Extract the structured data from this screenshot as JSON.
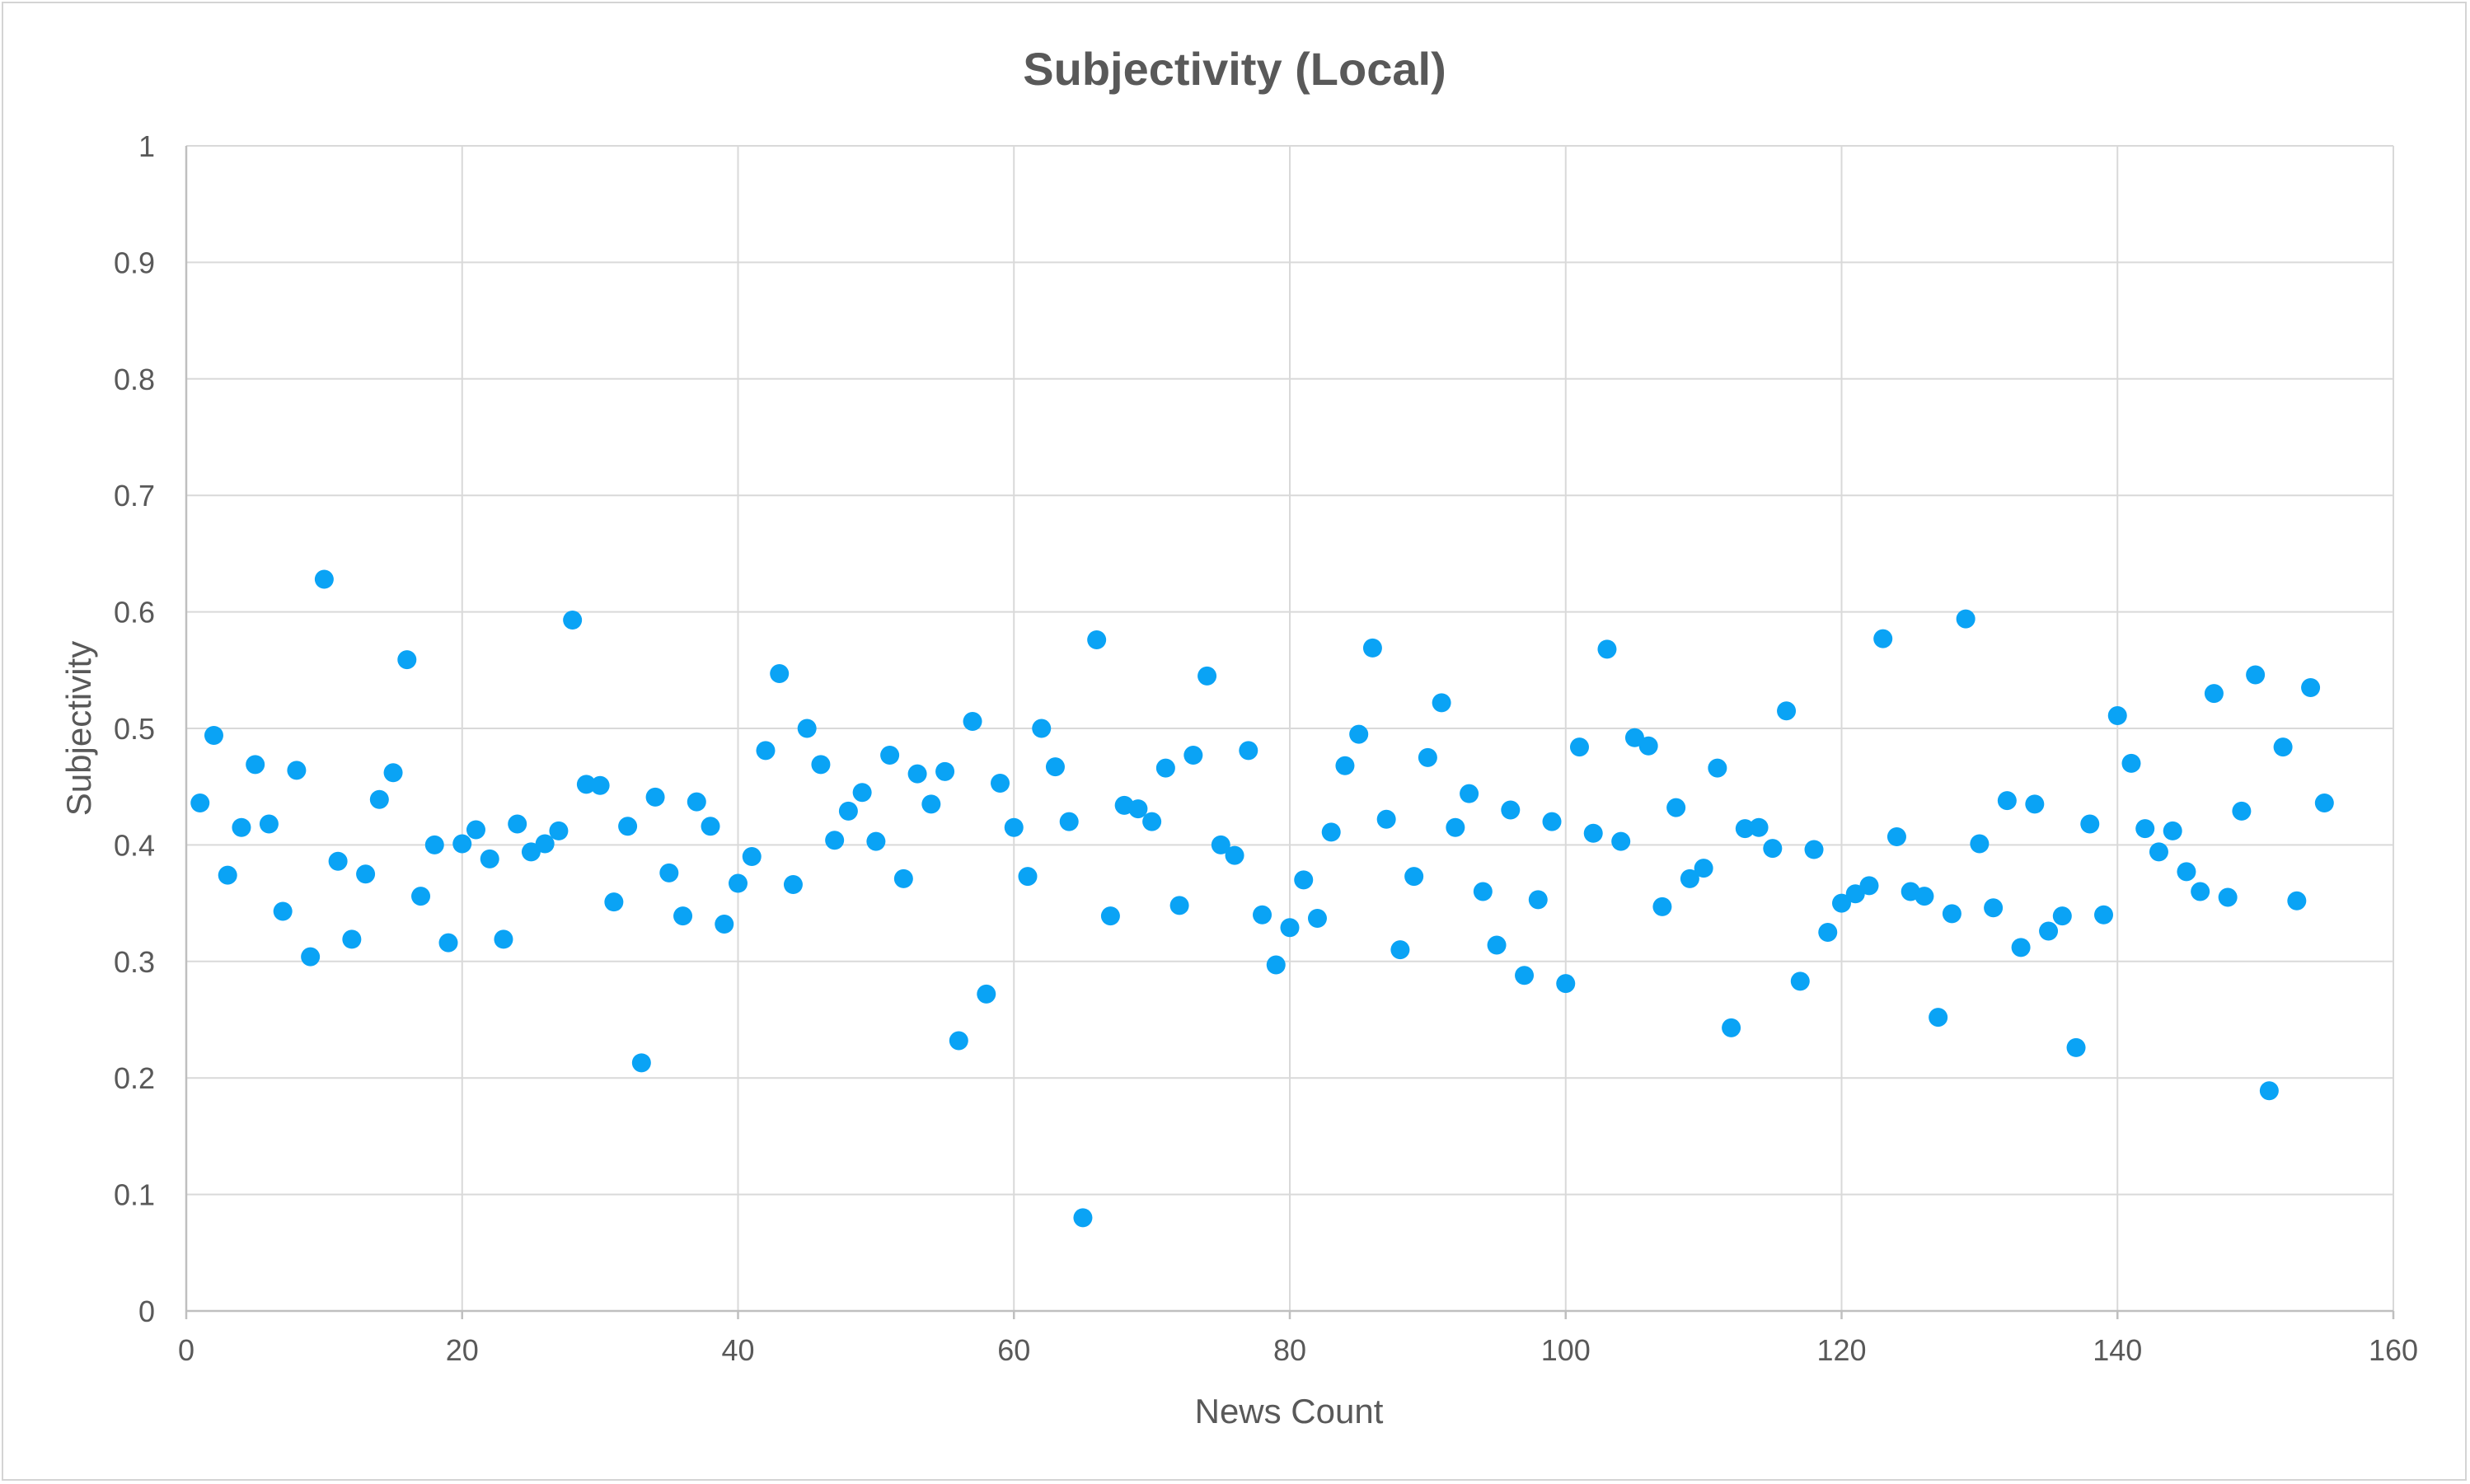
{
  "chart_data": {
    "type": "scatter",
    "title": "Subjectivity (Local)",
    "xlabel": "News Count",
    "ylabel": "Subjectivity",
    "xlim": [
      0,
      160
    ],
    "ylim": [
      0,
      1
    ],
    "x_ticks": [
      0,
      20,
      40,
      60,
      80,
      100,
      120,
      140,
      160
    ],
    "y_ticks": [
      0,
      0.1,
      0.2,
      0.3,
      0.4,
      0.5,
      0.6,
      0.7,
      0.8,
      0.9,
      1
    ],
    "x_tick_labels": [
      "0",
      "20",
      "40",
      "60",
      "80",
      "100",
      "120",
      "140",
      "160"
    ],
    "y_tick_labels": [
      "0",
      "0.1",
      "0.2",
      "0.3",
      "0.4",
      "0.5",
      "0.6",
      "0.7",
      "0.8",
      "0.9",
      "1"
    ],
    "grid": true,
    "legend": "none",
    "marker_color": "#0aa3f5",
    "series": [
      {
        "x": [
          1,
          2,
          3,
          4,
          5,
          6,
          7,
          8,
          9,
          10,
          11,
          12,
          13,
          14,
          15,
          16,
          17,
          18,
          19,
          20,
          21,
          22,
          23,
          24,
          25,
          26,
          27,
          28,
          29,
          30,
          31,
          32,
          33,
          34,
          35,
          36,
          37,
          38,
          39,
          40,
          41,
          42,
          43,
          44,
          45,
          46,
          47,
          48,
          49,
          50,
          51,
          52,
          53,
          54,
          55,
          56,
          57,
          58,
          59,
          60,
          61,
          62,
          63,
          64,
          65,
          66,
          67,
          68,
          69,
          70,
          71,
          72,
          73,
          74,
          75,
          76,
          77,
          78,
          79,
          80,
          81,
          82,
          83,
          84,
          85,
          86,
          87,
          88,
          89,
          90,
          91,
          92,
          93,
          94,
          95,
          96,
          97,
          98,
          99,
          100,
          101,
          102,
          103,
          104,
          105,
          106,
          107,
          108,
          109,
          110,
          111,
          112,
          113,
          114,
          115,
          116,
          117,
          118,
          119,
          120,
          121,
          122,
          123,
          124,
          125,
          126,
          127,
          128,
          129,
          130,
          131,
          132,
          133,
          134,
          135,
          136,
          137,
          138,
          139,
          140,
          141,
          142,
          143,
          144,
          145,
          146,
          147,
          148,
          149,
          150,
          151,
          152,
          153,
          154,
          155
        ],
        "y": [
          0.436,
          0.494,
          0.374,
          0.415,
          0.469,
          0.418,
          0.343,
          0.464,
          0.304,
          0.628,
          0.386,
          0.319,
          0.375,
          0.439,
          0.462,
          0.559,
          0.356,
          0.4,
          0.316,
          0.401,
          0.413,
          0.388,
          0.319,
          0.418,
          0.394,
          0.401,
          0.412,
          0.593,
          0.452,
          0.451,
          0.351,
          0.416,
          0.213,
          0.441,
          0.376,
          0.339,
          0.437,
          0.416,
          0.332,
          0.367,
          0.39,
          0.481,
          0.547,
          0.366,
          0.5,
          0.469,
          0.404,
          0.429,
          0.445,
          0.403,
          0.477,
          0.371,
          0.461,
          0.435,
          0.463,
          0.232,
          0.506,
          0.272,
          0.453,
          0.415,
          0.373,
          0.5,
          0.467,
          0.42,
          0.08,
          0.576,
          0.339,
          0.434,
          0.431,
          0.42,
          0.466,
          0.348,
          0.477,
          0.545,
          0.4,
          0.391,
          0.481,
          0.34,
          0.297,
          0.329,
          0.37,
          0.337,
          0.411,
          0.468,
          0.495,
          0.569,
          0.422,
          0.31,
          0.373,
          0.475,
          0.522,
          0.415,
          0.444,
          0.36,
          0.314,
          0.43,
          0.288,
          0.353,
          0.42,
          0.281,
          0.484,
          0.41,
          0.568,
          0.403,
          0.492,
          0.485,
          0.347,
          0.432,
          0.371,
          0.38,
          0.466,
          0.243,
          0.414,
          0.415,
          0.397,
          0.515,
          0.283,
          0.396,
          0.325,
          0.35,
          0.358,
          0.365,
          0.577,
          0.407,
          0.36,
          0.356,
          0.252,
          0.341,
          0.594,
          0.401,
          0.346,
          0.438,
          0.312,
          0.435,
          0.326,
          0.339,
          0.226,
          0.418,
          0.34,
          0.511,
          0.47,
          0.414,
          0.394,
          0.412,
          0.377,
          0.36,
          0.53,
          0.355,
          0.429,
          0.546,
          0.189,
          0.484,
          0.352,
          0.535,
          0.436
        ]
      }
    ]
  }
}
